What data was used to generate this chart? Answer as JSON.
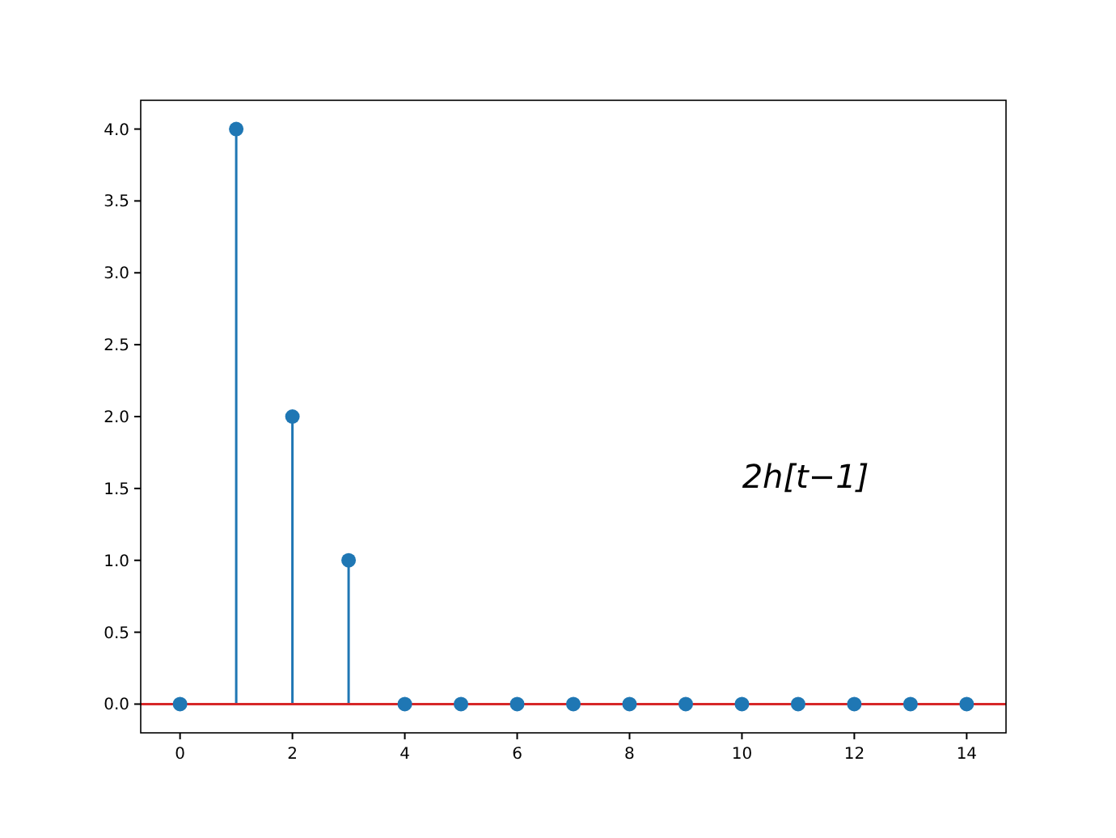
{
  "chart_data": {
    "type": "lollipop",
    "x": [
      0,
      1,
      2,
      3,
      4,
      5,
      6,
      7,
      8,
      9,
      10,
      11,
      12,
      13,
      14
    ],
    "values": [
      0,
      4,
      2,
      1,
      0,
      0,
      0,
      0,
      0,
      0,
      0,
      0,
      0,
      0,
      0
    ],
    "color": "#1f77b4",
    "marker": "circle",
    "xlim": [
      -0.7,
      14.7
    ],
    "xticks": [
      0,
      2,
      4,
      6,
      8,
      10,
      12,
      14
    ],
    "ylim": [
      -0.2,
      4.2
    ],
    "yticks": [
      {
        "value": 0,
        "label": "0.0"
      },
      {
        "value": 0.5,
        "label": "0.5"
      },
      {
        "value": 1,
        "label": "1.0"
      },
      {
        "value": 1.5,
        "label": "1.5"
      },
      {
        "value": 2,
        "label": "2.0"
      },
      {
        "value": 2.5,
        "label": "2.5"
      },
      {
        "value": 3,
        "label": "3.0"
      },
      {
        "value": 3.5,
        "label": "3.5"
      },
      {
        "value": 4,
        "label": "4.0"
      }
    ],
    "ref_lines": [
      {
        "axis": "y",
        "value": 0,
        "color": "#d62728"
      }
    ],
    "annotations": [
      "2h[t−1]"
    ]
  }
}
